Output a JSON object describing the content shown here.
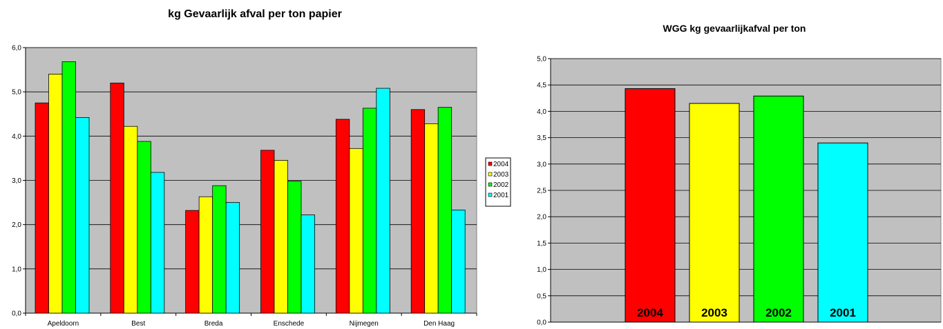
{
  "chart_data": [
    {
      "type": "bar",
      "title": "kg Gevaarlijk afval per ton papier",
      "categories": [
        "Apeldoorn",
        "Best",
        "Breda",
        "Enschede",
        "Nijmegen",
        "Den Haag"
      ],
      "series": [
        {
          "name": "2004",
          "color": "#ff0000",
          "values": [
            4.75,
            5.2,
            2.32,
            3.68,
            4.38,
            4.6
          ]
        },
        {
          "name": "2003",
          "color": "#ffff00",
          "values": [
            5.4,
            4.22,
            2.63,
            3.45,
            3.72,
            4.28
          ]
        },
        {
          "name": "2002",
          "color": "#00ff00",
          "values": [
            5.68,
            3.88,
            2.88,
            2.98,
            4.63,
            4.65
          ]
        },
        {
          "name": "2001",
          "color": "#00ffff",
          "values": [
            4.42,
            3.18,
            2.5,
            2.22,
            5.08,
            2.33
          ]
        }
      ],
      "ylim": [
        0,
        6
      ],
      "yticks": [
        "0,0",
        "1,0",
        "2,0",
        "3,0",
        "4,0",
        "5,0",
        "6,0"
      ],
      "grid": true,
      "plot_background": "#c0c0c0",
      "legend": "right"
    },
    {
      "type": "bar",
      "title": "WGG kg gevaarlijkafval per ton",
      "categories": [
        "2004",
        "2003",
        "2002",
        "2001"
      ],
      "values": [
        4.43,
        4.15,
        4.29,
        3.4
      ],
      "colors": [
        "#ff0000",
        "#ffff00",
        "#00ff00",
        "#00ffff"
      ],
      "ylim": [
        0,
        5
      ],
      "yticks": [
        "0,0",
        "0,5",
        "1,0",
        "1,5",
        "2,0",
        "2,5",
        "3,0",
        "3,5",
        "4,0",
        "4,5",
        "5,0"
      ],
      "grid": true,
      "plot_background": "#c0c0c0",
      "legend": "none"
    }
  ]
}
